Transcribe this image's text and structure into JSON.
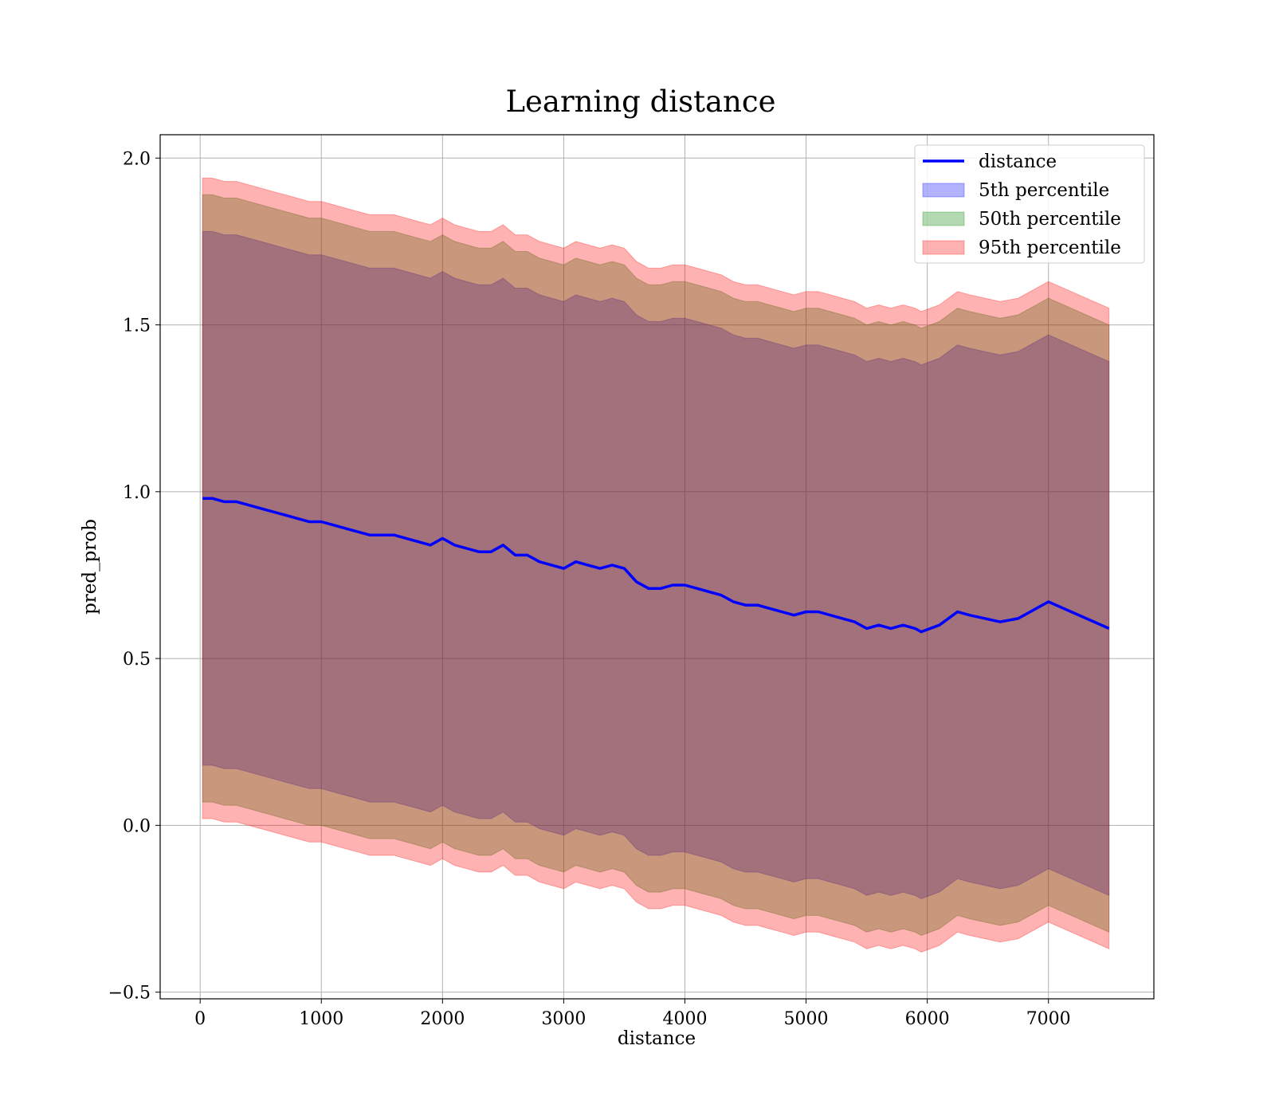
{
  "chart_data": {
    "type": "area",
    "title": "Learning distance",
    "xlabel": "distance",
    "ylabel": "pred_prob",
    "xlim": [
      -330,
      7870
    ],
    "ylim": [
      -0.52,
      2.07
    ],
    "xticks": [
      0,
      1000,
      2000,
      3000,
      4000,
      5000,
      6000,
      7000
    ],
    "xtick_labels": [
      "0",
      "1000",
      "2000",
      "3000",
      "4000",
      "5000",
      "6000",
      "7000"
    ],
    "yticks": [
      -0.5,
      0.0,
      0.5,
      1.0,
      1.5,
      2.0
    ],
    "ytick_labels": [
      "−0.5",
      "0.0",
      "0.5",
      "1.0",
      "1.5",
      "2.0"
    ],
    "grid": true,
    "legend_position": "top-right",
    "x": [
      20,
      100,
      200,
      300,
      400,
      500,
      600,
      700,
      800,
      900,
      1000,
      1100,
      1200,
      1300,
      1400,
      1500,
      1600,
      1700,
      1800,
      1900,
      2000,
      2100,
      2200,
      2300,
      2400,
      2500,
      2600,
      2700,
      2800,
      2900,
      3000,
      3100,
      3200,
      3300,
      3400,
      3500,
      3600,
      3700,
      3800,
      3900,
      4000,
      4100,
      4200,
      4300,
      4400,
      4500,
      4600,
      4700,
      4800,
      4900,
      5000,
      5100,
      5200,
      5300,
      5400,
      5500,
      5600,
      5700,
      5800,
      5900,
      5950,
      6100,
      6250,
      6350,
      6600,
      6750,
      7000,
      7500
    ],
    "series": [
      {
        "name": "distance",
        "kind": "line",
        "color": "#0000ff",
        "values": [
          0.98,
          0.98,
          0.97,
          0.97,
          0.96,
          0.95,
          0.94,
          0.93,
          0.92,
          0.91,
          0.91,
          0.9,
          0.89,
          0.88,
          0.87,
          0.87,
          0.87,
          0.86,
          0.85,
          0.84,
          0.86,
          0.84,
          0.83,
          0.82,
          0.82,
          0.84,
          0.81,
          0.81,
          0.79,
          0.78,
          0.77,
          0.79,
          0.78,
          0.77,
          0.78,
          0.77,
          0.73,
          0.71,
          0.71,
          0.72,
          0.72,
          0.71,
          0.7,
          0.69,
          0.67,
          0.66,
          0.66,
          0.65,
          0.64,
          0.63,
          0.64,
          0.64,
          0.63,
          0.62,
          0.61,
          0.59,
          0.6,
          0.59,
          0.6,
          0.59,
          0.58,
          0.6,
          0.64,
          0.63,
          0.61,
          0.62,
          0.67,
          0.59
        ]
      },
      {
        "name": "5th percentile",
        "kind": "band",
        "color": "#0000ff",
        "half_width": 0.8
      },
      {
        "name": "50th percentile",
        "kind": "band",
        "color": "#008000",
        "half_width": 0.91
      },
      {
        "name": "95th percentile",
        "kind": "band",
        "color": "#ff0000",
        "half_width": 0.96
      }
    ]
  }
}
